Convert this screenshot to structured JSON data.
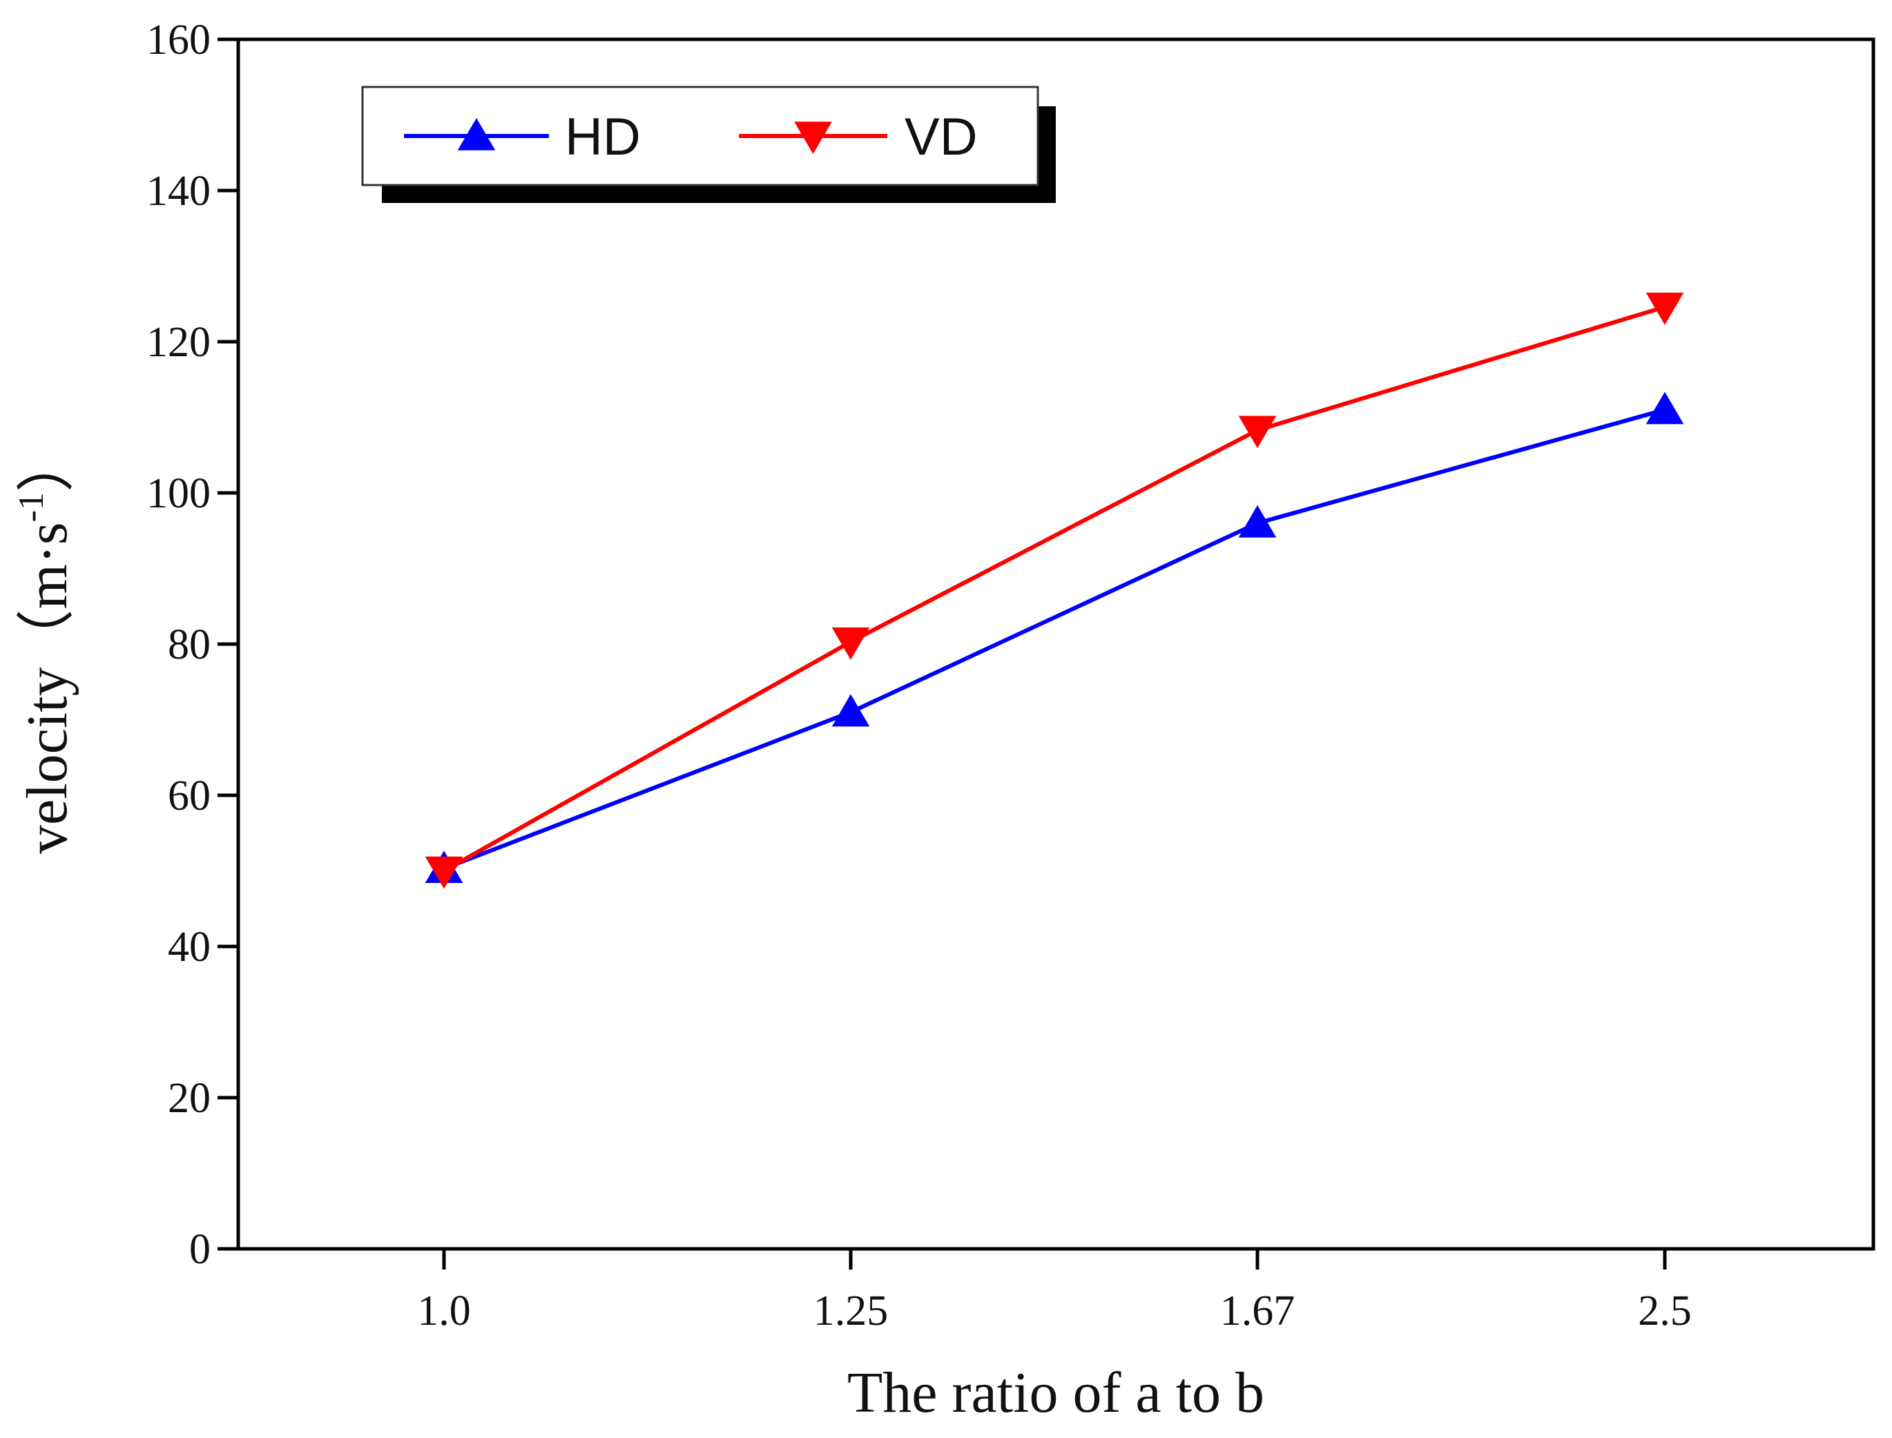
{
  "chart_data": {
    "type": "line",
    "categories": [
      "1.0",
      "1.25",
      "1.67",
      "2.5"
    ],
    "series": [
      {
        "name": "HD",
        "color": "#0000ff",
        "marker": "triangle-up",
        "values": [
          50.3,
          71,
          96,
          111
        ]
      },
      {
        "name": "VD",
        "color": "#ff0000",
        "marker": "triangle-down",
        "values": [
          50,
          80.3,
          108.3,
          124.6
        ]
      }
    ],
    "title": "",
    "xlabel": "The ratio of a to b",
    "ylabel": {
      "main": "velocity（m·s",
      "superscript": "-1",
      "close": "）"
    },
    "ylim": [
      0,
      160
    ],
    "yticks": [
      "0",
      "20",
      "40",
      "60",
      "80",
      "100",
      "120",
      "140",
      "160"
    ],
    "grid": false,
    "legend_position": "top-left"
  }
}
